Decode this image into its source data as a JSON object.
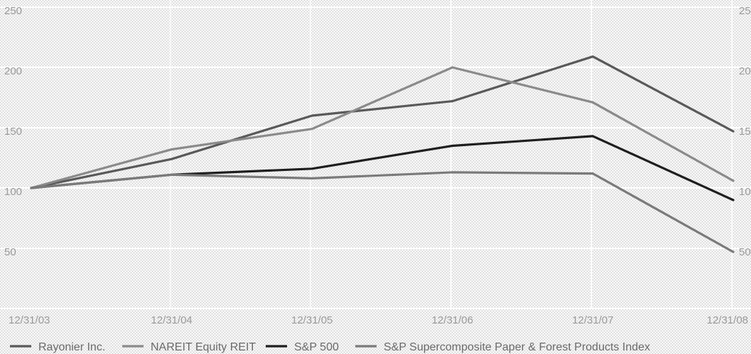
{
  "chart_data": {
    "type": "line",
    "categories": [
      "12/31/03",
      "12/31/04",
      "12/31/05",
      "12/31/06",
      "12/31/07",
      "12/31/08"
    ],
    "ylim": [
      0,
      250
    ],
    "yticks": [
      "50",
      "100",
      "150",
      "200",
      "250"
    ],
    "grid": true,
    "legend_position": "bottom",
    "series": [
      {
        "name": "Rayonier Inc.",
        "color": "#595959",
        "values": [
          100,
          124,
          160,
          172,
          209,
          147
        ]
      },
      {
        "name": "NAREIT Equity REIT",
        "color": "#8a8a8a",
        "values": [
          100,
          132,
          149,
          200,
          171,
          106
        ]
      },
      {
        "name": "S&P 500",
        "color": "#1e1e1e",
        "values": [
          100,
          111,
          116,
          135,
          143,
          90
        ]
      },
      {
        "name": "S&P Supercomposite Paper & Forest Products Index",
        "color": "#7a7a7a",
        "values": [
          100,
          111,
          108,
          113,
          112,
          47
        ]
      }
    ]
  }
}
